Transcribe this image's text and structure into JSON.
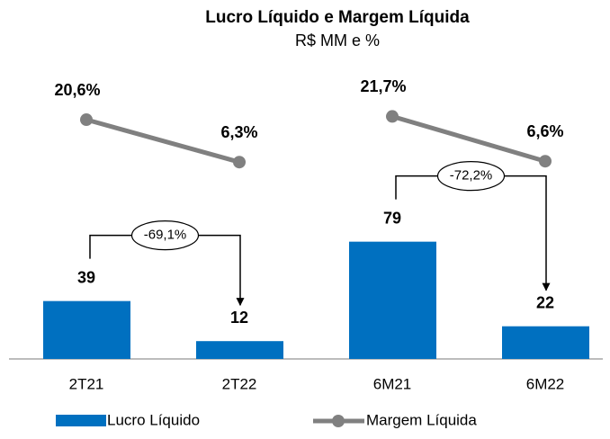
{
  "chart_data": {
    "type": "bar_line",
    "title": "Lucro Líquido e Margem Líquida",
    "subtitle": "R$ MM e %",
    "categories": [
      "2T21",
      "2T22",
      "6M21",
      "6M22"
    ],
    "series": [
      {
        "name": "Lucro Líquido",
        "color": "#0070c0",
        "values": [
          39,
          12,
          79,
          22
        ]
      },
      {
        "name": "Margem Líquida",
        "color": "#808080",
        "axis": "y2",
        "values": [
          20.6,
          6.3,
          21.7,
          6.6
        ],
        "value_labels": [
          "20,6%",
          "6,3%",
          "21,7%",
          "6,6%"
        ]
      }
    ],
    "annotations": [
      "-69,1%",
      "-72,2%"
    ],
    "ylim": [
      0,
      200
    ],
    "y2lim": [
      -60,
      40
    ]
  }
}
